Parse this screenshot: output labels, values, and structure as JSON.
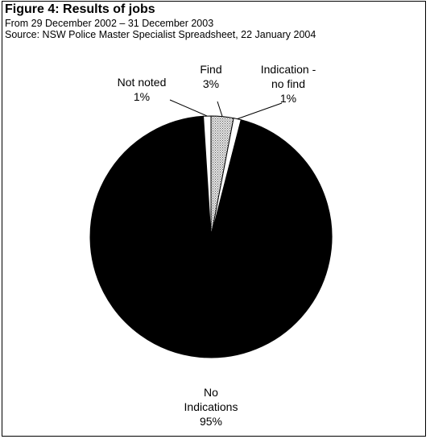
{
  "figure": {
    "title": "Figure 4: Results of jobs",
    "subtitle_1": "From 29 December 2002 – 31 December 2003",
    "subtitle_2": "Source:  NSW Police Master Specialist Spreadsheet, 22 January 2004"
  },
  "chart_data": {
    "type": "pie",
    "title": "Figure 4: Results of jobs",
    "subtitle": "From 29 December 2002 – 31 December 2003; Source:  NSW Police Master Specialist Spreadsheet, 22 January 2004",
    "start_angle_deg": 0,
    "direction": "clockwise",
    "slices": [
      {
        "label_lines": [
          "Find",
          "3%"
        ],
        "value": 3,
        "fill": "#c8c8c8",
        "pattern": "dotted"
      },
      {
        "label_lines": [
          "Indication -",
          "no find",
          "1%"
        ],
        "value": 1,
        "fill": "#ffffff",
        "pattern": "none"
      },
      {
        "label_lines": [
          "No",
          "Indications",
          "95%"
        ],
        "value": 95,
        "fill": "#000000",
        "pattern": "none"
      },
      {
        "label_lines": [
          "Not noted",
          "1%"
        ],
        "value": 1,
        "fill": "#ffffff",
        "pattern": "none"
      }
    ]
  }
}
